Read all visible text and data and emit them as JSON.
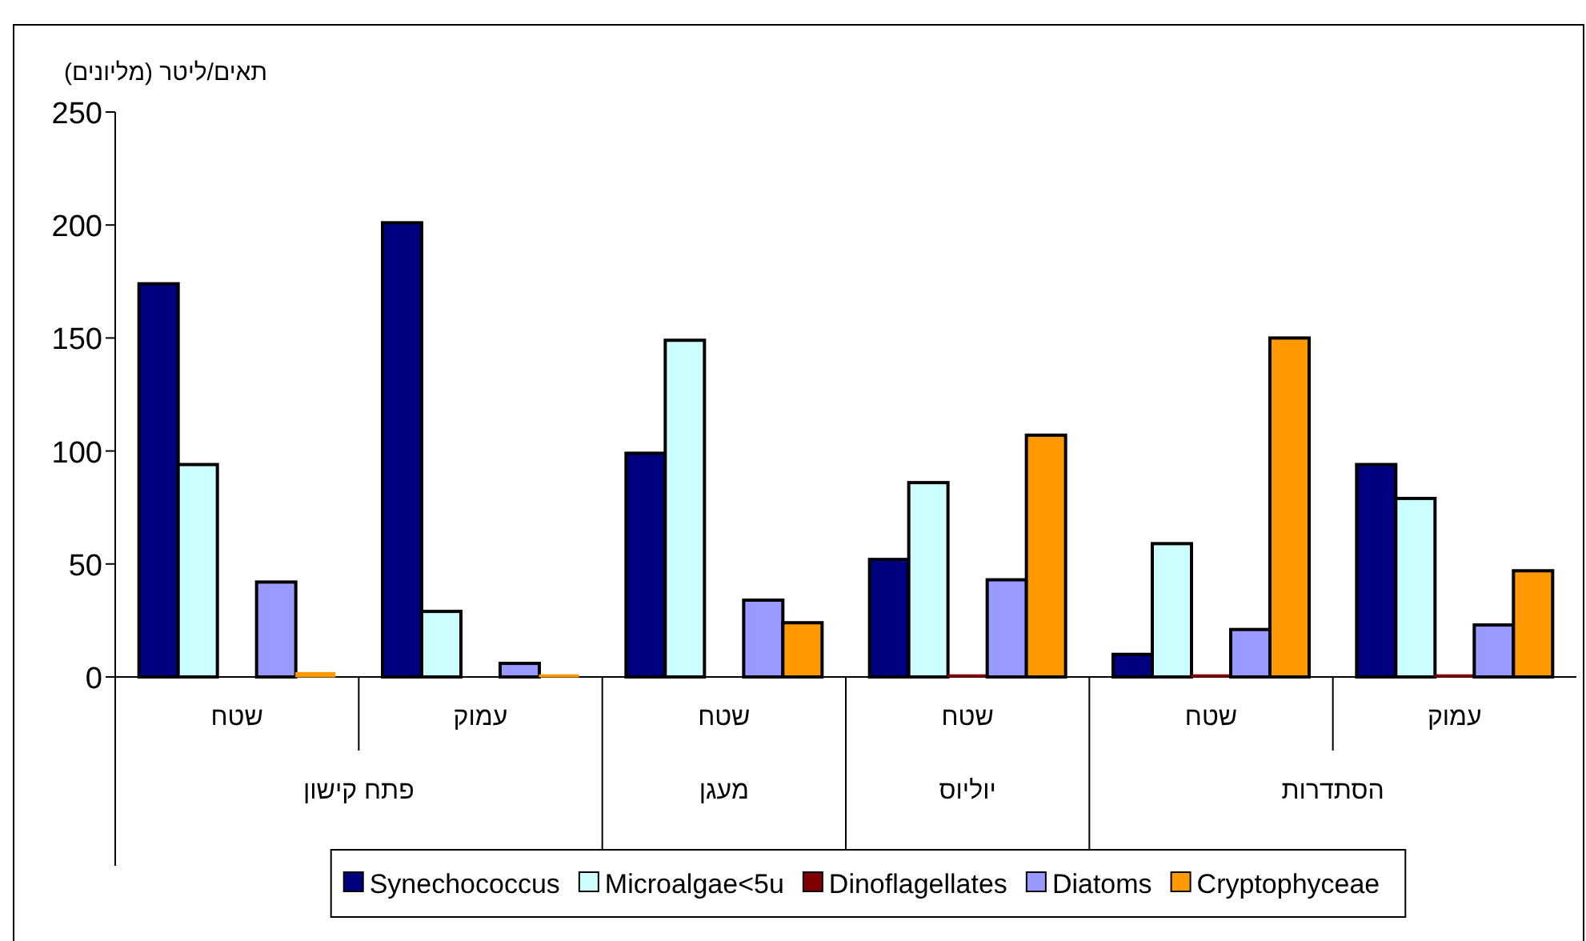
{
  "chart_data": {
    "type": "bar",
    "ylabel": "תאים/ליטר (מליונים)",
    "categories": [
      "שטח",
      "עמוק",
      "שטח",
      "שטח",
      "שטח",
      "עמוק"
    ],
    "annotations": [
      "פתח קישון",
      "מעגן",
      "יוליוס",
      "הסתדרות"
    ],
    "series": [
      {
        "name": "Synechococcus",
        "color": "#000080",
        "values": [
          174,
          201,
          99,
          52,
          10,
          94
        ]
      },
      {
        "name": "Microalgae<5u",
        "color": "#ccffff",
        "values": [
          94,
          29,
          149,
          86,
          59,
          79
        ]
      },
      {
        "name": "Dinoflagellates",
        "color": "#800000",
        "values": [
          0,
          0,
          0,
          1,
          1,
          1
        ]
      },
      {
        "name": "Diatoms",
        "color": "#9999ff",
        "values": [
          42,
          6,
          34,
          43,
          21,
          23
        ]
      },
      {
        "name": "Cryptophyceae",
        "color": "#ff9900",
        "values": [
          2,
          1,
          24,
          107,
          150,
          47
        ]
      }
    ],
    "ylim": [
      0,
      250
    ],
    "yticks": [
      0,
      50,
      100,
      150,
      200,
      250
    ],
    "legend": "bottom"
  }
}
